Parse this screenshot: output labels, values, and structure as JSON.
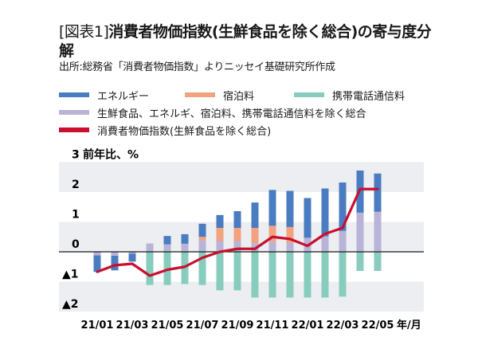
{
  "header": {
    "title_prefix": "[図表1]",
    "title_main": "消費者物価指数(生鮮食品を除く総合)の寄与度分解",
    "source": "出所:総務省「消費者物価指数」よりニッセイ基礎研究所作成"
  },
  "chart_data": {
    "type": "bar",
    "stacked": true,
    "title": "[図表1]消費者物価指数(生鮮食品を除く総合)の寄与度分解",
    "ylabel": "前年比、%",
    "xlabel": "年/月",
    "ylim": [
      -2,
      3
    ],
    "yticks": [
      {
        "value": 3,
        "label": "3"
      },
      {
        "value": 2,
        "label": "2"
      },
      {
        "value": 1,
        "label": "1"
      },
      {
        "value": 0,
        "label": "0"
      },
      {
        "value": -1,
        "label": "▲1"
      },
      {
        "value": -2,
        "label": "▲2"
      }
    ],
    "grid": "alternating bands",
    "categories": [
      "21/01",
      "21/02",
      "21/03",
      "21/04",
      "21/05",
      "21/06",
      "21/07",
      "21/08",
      "21/09",
      "21/10",
      "21/11",
      "21/12",
      "22/01",
      "22/02",
      "22/03",
      "22/04",
      "22/05"
    ],
    "xtick_labels": [
      "21/01",
      "21/03",
      "21/05",
      "21/07",
      "21/09",
      "21/11",
      "22/01",
      "22/03",
      "22/05"
    ],
    "legend_position": "top",
    "series": [
      {
        "name": "生鮮食品、エネルギ、宿泊料、携帯電話通信料を除く総合",
        "kind": "bar",
        "color": "#b9b4d7",
        "values": [
          -0.12,
          -0.13,
          -0.06,
          0.28,
          0.25,
          0.27,
          0.38,
          0.36,
          0.36,
          0.29,
          0.34,
          0.3,
          0.47,
          0.52,
          0.7,
          1.31,
          1.34
        ]
      },
      {
        "name": "宿泊料",
        "kind": "bar",
        "color": "#f2a27e",
        "values": [
          0,
          0,
          0,
          0,
          0,
          0,
          0.12,
          0.44,
          0.44,
          0.51,
          0.53,
          0.53,
          0,
          0,
          0,
          0,
          0
        ]
      },
      {
        "name": "エネルギー",
        "kind": "bar",
        "color": "#4a7cc1",
        "values": [
          -0.55,
          -0.49,
          -0.27,
          0,
          0.28,
          0.32,
          0.44,
          0.43,
          0.56,
          0.85,
          1.2,
          1.21,
          1.33,
          1.6,
          1.62,
          1.41,
          1.28
        ]
      },
      {
        "name": "携帯電話通信料",
        "kind": "bar",
        "color": "#88ccbe",
        "values": [
          0,
          0,
          0,
          -1.11,
          -1.11,
          -1.08,
          -1.11,
          -1.29,
          -1.29,
          -1.53,
          -1.53,
          -1.53,
          -1.53,
          -1.53,
          -1.5,
          -0.64,
          -0.64
        ]
      },
      {
        "name": "消費者物価指数(生鮮食品を除く総合)",
        "kind": "line",
        "color": "#c8102e",
        "values": [
          -0.67,
          -0.45,
          -0.4,
          -0.8,
          -0.6,
          -0.5,
          -0.2,
          0.0,
          0.1,
          0.1,
          0.5,
          0.43,
          0.2,
          0.6,
          0.8,
          2.1,
          2.1
        ]
      }
    ]
  },
  "legend": {
    "energy": "エネルギー",
    "accommodation": "宿泊料",
    "mobile": "携帯電話通信料",
    "core_ex": "生鮮食品、エネルギ、宿泊料、携帯電話通信料を除く総合",
    "cpi": "消費者物価指数(生鮮食品を除く総合)"
  },
  "colors": {
    "energy": "#4a7cc1",
    "accommodation": "#f2a27e",
    "mobile": "#88ccbe",
    "core_ex": "#b9b4d7",
    "cpi": "#c8102e",
    "band": "#eceef1"
  }
}
